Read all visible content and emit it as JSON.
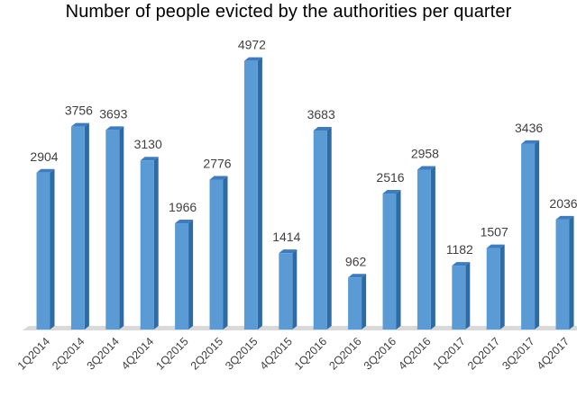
{
  "chart_data": {
    "type": "bar",
    "title": "Number of people evicted by the authorities per quarter",
    "xlabel": "",
    "ylabel": "",
    "categories": [
      "1Q2014",
      "2Q2014",
      "3Q2014",
      "4Q2014",
      "1Q2015",
      "2Q2015",
      "3Q2015",
      "4Q2015",
      "1Q2016",
      "2Q2016",
      "3Q2016",
      "4Q2016",
      "1Q2017",
      "2Q2017",
      "3Q2017",
      "4Q2017"
    ],
    "values": [
      2904,
      3756,
      3693,
      3130,
      1966,
      2776,
      4972,
      1414,
      3683,
      962,
      2516,
      2958,
      1182,
      1507,
      3436,
      2036
    ],
    "ylim": [
      0,
      5000
    ],
    "grid": false,
    "legend": "none",
    "style": "3d-column",
    "colors": {
      "bar_front": "#5B9BD5",
      "bar_side": "#2E6AA3",
      "bar_top": "#3D7CC0",
      "floor": "#D9D9D9"
    }
  }
}
